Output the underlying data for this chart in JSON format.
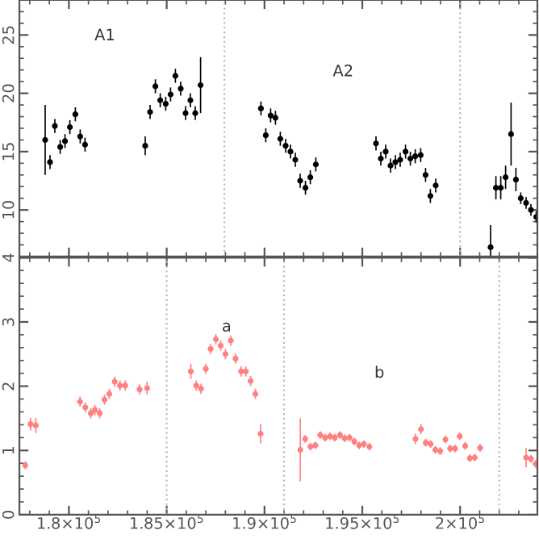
{
  "chart_data": [
    {
      "type": "scatter",
      "marker": "circle",
      "tick_labels": "y",
      "xlim": [
        177470,
        203950
      ],
      "ylim": [
        6,
        28
      ],
      "yticks": [
        10,
        15,
        20,
        25
      ],
      "xticks": [
        {
          "value": 180000,
          "label": null
        },
        {
          "value": 185000,
          "label": null
        },
        {
          "value": 190000,
          "label": null
        },
        {
          "value": 195000,
          "label": null
        },
        {
          "value": 200000,
          "label": null
        }
      ],
      "series": [
        {
          "color": "#000000",
          "x": [
            178787,
            179035,
            179282,
            179555,
            179802,
            180050,
            180330,
            180578,
            180825,
            183902,
            184150,
            184422,
            184670,
            184950,
            185198,
            185445,
            185717,
            185965,
            186212,
            186460,
            186732,
            189818,
            190065,
            190313,
            190560,
            190808,
            191080,
            191328,
            191575,
            191823,
            192094,
            192342,
            192623,
            195700,
            195947,
            196195,
            196442,
            196690,
            196937,
            197210,
            197457,
            197705,
            197985,
            198233,
            198480,
            198752,
            201557,
            201830,
            202077,
            202325,
            202605,
            202853,
            203100,
            203372,
            203620,
            203892
          ],
          "values": [
            16.0,
            14.1,
            17.2,
            15.4,
            15.9,
            17.1,
            18.2,
            16.3,
            15.6,
            15.5,
            18.4,
            20.6,
            19.4,
            19.1,
            19.9,
            21.5,
            20.4,
            18.3,
            19.4,
            18.3,
            20.7,
            18.7,
            16.4,
            18.1,
            17.9,
            16.1,
            15.5,
            15.0,
            14.3,
            12.5,
            11.9,
            12.8,
            13.9,
            15.7,
            14.4,
            15.0,
            13.8,
            14.1,
            14.3,
            15.0,
            14.4,
            14.6,
            14.7,
            13.0,
            11.2,
            12.1,
            6.8,
            11.9,
            11.9,
            12.8,
            16.5,
            12.6,
            11.0,
            10.6,
            10.0,
            9.4
          ],
          "errors": [
            3.0,
            0.6,
            0.6,
            0.6,
            0.6,
            0.6,
            0.6,
            0.6,
            0.6,
            0.8,
            0.6,
            0.6,
            0.6,
            0.6,
            0.6,
            0.6,
            0.6,
            0.6,
            0.6,
            0.6,
            2.4,
            0.6,
            0.6,
            0.6,
            0.6,
            0.6,
            0.6,
            0.6,
            0.6,
            0.6,
            0.6,
            0.6,
            0.6,
            0.6,
            0.6,
            0.6,
            0.6,
            0.6,
            0.6,
            0.6,
            0.6,
            0.6,
            0.6,
            0.6,
            0.6,
            0.6,
            1.9,
            1.0,
            1.0,
            1.0,
            2.7,
            1.0,
            0.5,
            0.5,
            0.5,
            0.5
          ]
        }
      ],
      "ref_lines": [
        {
          "axis": "x",
          "value": 187950,
          "line_style": "dotted",
          "color": "#bbbbbb"
        },
        {
          "axis": "x",
          "value": 200000,
          "line_style": "dotted",
          "color": "#bbbbbb"
        }
      ],
      "annotations": [
        "A1",
        "A2"
      ]
    },
    {
      "type": "scatter",
      "marker": "circle",
      "xlim": [
        177470,
        203950
      ],
      "ylim": [
        0,
        4
      ],
      "yticks": [
        0,
        1,
        2,
        3,
        4
      ],
      "xticks": [
        {
          "value": 180000,
          "label": "1.8×10$^{5}$"
        },
        {
          "value": 185000,
          "label": "1.85×10$^{5}$"
        },
        {
          "value": 190000,
          "label": "1.9×10$^{5}$"
        },
        {
          "value": 195000,
          "label": "1.95×10$^{5}$"
        },
        {
          "value": 200000,
          "label": "2×10$^{5}$"
        }
      ],
      "series": [
        {
          "color": "#ff8080",
          "x": [
            177770,
            178040,
            178310,
            180570,
            180840,
            181120,
            181330,
            181575,
            181820,
            182065,
            182340,
            182610,
            182880,
            183615,
            184000,
            186235,
            186510,
            186755,
            187000,
            187245,
            187515,
            187760,
            188005,
            188275,
            188520,
            188800,
            189045,
            189290,
            189535,
            189800,
            191830,
            192080,
            192350,
            192600,
            192850,
            193100,
            193350,
            193590,
            193860,
            194100,
            194350,
            194590,
            194840,
            195080,
            195360,
            197720,
            198000,
            198240,
            198490,
            198730,
            198980,
            199250,
            199490,
            199740,
            199980,
            200260,
            200500,
            200750,
            201020,
            203370,
            203620,
            203860
          ],
          "values": [
            0.77,
            1.41,
            1.39,
            1.76,
            1.67,
            1.58,
            1.63,
            1.58,
            1.79,
            1.88,
            2.07,
            2.01,
            2.01,
            1.95,
            1.97,
            2.23,
            2.01,
            1.96,
            2.27,
            2.58,
            2.73,
            2.63,
            2.5,
            2.71,
            2.43,
            2.23,
            2.23,
            2.08,
            1.88,
            1.26,
            1.01,
            1.18,
            1.06,
            1.08,
            1.24,
            1.2,
            1.22,
            1.2,
            1.24,
            1.19,
            1.2,
            1.14,
            1.08,
            1.1,
            1.06,
            1.18,
            1.33,
            1.12,
            1.1,
            1.01,
            0.99,
            1.17,
            1.03,
            1.03,
            1.22,
            1.07,
            0.88,
            0.89,
            1.04,
            0.89,
            0.87,
            0.79
          ],
          "errors": [
            0.06,
            0.1,
            0.12,
            0.08,
            0.08,
            0.08,
            0.08,
            0.08,
            0.08,
            0.08,
            0.08,
            0.08,
            0.08,
            0.08,
            0.1,
            0.12,
            0.08,
            0.08,
            0.08,
            0.08,
            0.08,
            0.08,
            0.08,
            0.08,
            0.08,
            0.08,
            0.08,
            0.08,
            0.08,
            0.15,
            0.49,
            0.06,
            0.06,
            0.06,
            0.06,
            0.06,
            0.06,
            0.06,
            0.06,
            0.06,
            0.06,
            0.06,
            0.06,
            0.06,
            0.06,
            0.08,
            0.08,
            0.06,
            0.06,
            0.06,
            0.06,
            0.06,
            0.06,
            0.06,
            0.06,
            0.06,
            0.06,
            0.06,
            0.06,
            0.15,
            0.06,
            0.06
          ]
        }
      ],
      "ref_lines": [
        {
          "axis": "x",
          "value": 185000,
          "line_style": "dotted",
          "color": "#bbbbbb"
        },
        {
          "axis": "x",
          "value": 191000,
          "line_style": "dotted",
          "color": "#bbbbbb"
        },
        {
          "axis": "x",
          "value": 202000,
          "line_style": "dotted",
          "color": "#bbbbbb"
        }
      ],
      "annotations": [
        "a",
        "b"
      ]
    }
  ]
}
